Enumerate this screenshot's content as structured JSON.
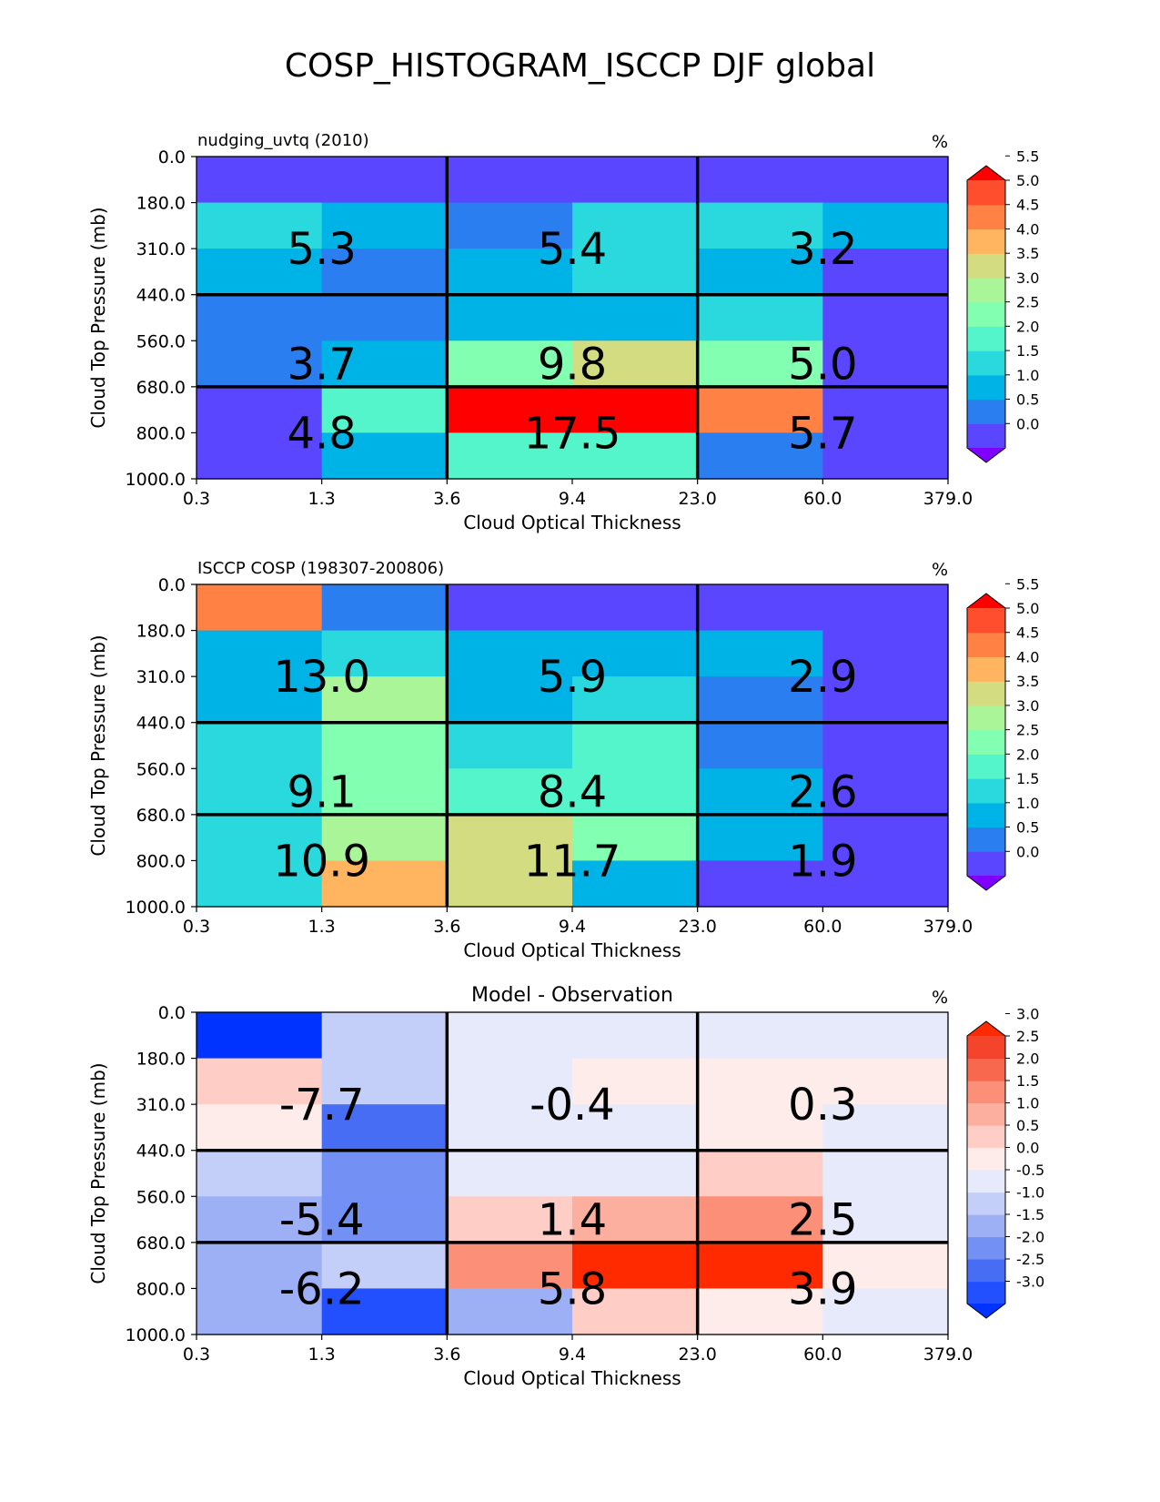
{
  "figure": {
    "title": "COSP_HISTOGRAM_ISCCP DJF global"
  },
  "chart_data": [
    {
      "type": "heatmap",
      "title_left": "nudging_uvtq (2010)",
      "title_center": "",
      "units": "%",
      "xlabel": "Cloud Optical Thickness",
      "ylabel": "Cloud Top Pressure (mb)",
      "x_edges": [
        "0.3",
        "1.3",
        "3.6",
        "9.4",
        "23.0",
        "60.0",
        "379.0"
      ],
      "y_edges": [
        "0.0",
        "180.0",
        "310.0",
        "440.0",
        "560.0",
        "680.0",
        "800.0",
        "1000.0"
      ],
      "values": [
        [
          0.2,
          0.2,
          0.2,
          0.2,
          0.2,
          0.2
        ],
        [
          1.8,
          1.3,
          0.8,
          1.8,
          1.8,
          1.3
        ],
        [
          1.3,
          0.8,
          1.3,
          1.8,
          1.3,
          0.2
        ],
        [
          0.8,
          0.8,
          1.3,
          1.3,
          1.8,
          0.2
        ],
        [
          0.8,
          1.3,
          2.8,
          3.8,
          2.8,
          0.2
        ],
        [
          0.2,
          2.3,
          5.8,
          5.8,
          4.8,
          0.2
        ],
        [
          0.2,
          1.3,
          2.3,
          2.3,
          0.8,
          0.2
        ]
      ],
      "box_labels": [
        [
          "5.3",
          "5.4",
          "3.2"
        ],
        [
          "3.7",
          "9.8",
          "5.0"
        ],
        [
          "4.8",
          "17.5",
          "5.7"
        ]
      ],
      "colorbar": {
        "levels": [
          0.0,
          0.5,
          1.0,
          1.5,
          2.0,
          2.5,
          3.0,
          3.5,
          4.0,
          4.5,
          5.0,
          5.5
        ],
        "tick_labels": [
          "0.0",
          "0.5",
          "1.0",
          "1.5",
          "2.0",
          "2.5",
          "3.0",
          "3.5",
          "4.0",
          "4.5",
          "5.0",
          "5.5"
        ],
        "colors": [
          "#8000ff",
          "#5a46ff",
          "#2a7ef0",
          "#00b3e6",
          "#2ad9dd",
          "#55f5cc",
          "#82ffb0",
          "#aaf597",
          "#d3dc80",
          "#ffb45f",
          "#ff8143",
          "#ff4e2d",
          "#ff0000"
        ]
      }
    },
    {
      "type": "heatmap",
      "title_left": "ISCCP COSP (198307-200806)",
      "title_center": "",
      "units": "%",
      "xlabel": "Cloud Optical Thickness",
      "ylabel": "Cloud Top Pressure (mb)",
      "x_edges": [
        "0.3",
        "1.3",
        "3.6",
        "9.4",
        "23.0",
        "60.0",
        "379.0"
      ],
      "y_edges": [
        "0.0",
        "180.0",
        "310.0",
        "440.0",
        "560.0",
        "680.0",
        "800.0",
        "1000.0"
      ],
      "values": [
        [
          4.8,
          0.8,
          0.2,
          0.2,
          0.2,
          0.2
        ],
        [
          1.3,
          1.8,
          1.3,
          1.3,
          1.3,
          0.2
        ],
        [
          1.3,
          3.3,
          1.3,
          1.8,
          0.8,
          0.2
        ],
        [
          1.8,
          2.8,
          1.8,
          2.3,
          0.8,
          0.2
        ],
        [
          1.8,
          2.8,
          2.3,
          2.3,
          1.3,
          0.2
        ],
        [
          1.8,
          3.3,
          3.8,
          2.8,
          1.3,
          0.2
        ],
        [
          1.8,
          4.3,
          3.8,
          1.3,
          0.2,
          0.2
        ]
      ],
      "box_labels": [
        [
          "13.0",
          "5.9",
          "2.9"
        ],
        [
          "9.1",
          "8.4",
          "2.6"
        ],
        [
          "10.9",
          "11.7",
          "1.9"
        ]
      ],
      "colorbar": {
        "levels": [
          0.0,
          0.5,
          1.0,
          1.5,
          2.0,
          2.5,
          3.0,
          3.5,
          4.0,
          4.5,
          5.0,
          5.5
        ],
        "tick_labels": [
          "0.0",
          "0.5",
          "1.0",
          "1.5",
          "2.0",
          "2.5",
          "3.0",
          "3.5",
          "4.0",
          "4.5",
          "5.0",
          "5.5"
        ],
        "colors": [
          "#8000ff",
          "#5a46ff",
          "#2a7ef0",
          "#00b3e6",
          "#2ad9dd",
          "#55f5cc",
          "#82ffb0",
          "#aaf597",
          "#d3dc80",
          "#ffb45f",
          "#ff8143",
          "#ff4e2d",
          "#ff0000"
        ]
      }
    },
    {
      "type": "heatmap",
      "title_left": "",
      "title_center": "Model - Observation",
      "units": "%",
      "xlabel": "Cloud Optical Thickness",
      "ylabel": "Cloud Top Pressure (mb)",
      "x_edges": [
        "0.3",
        "1.3",
        "3.6",
        "9.4",
        "23.0",
        "60.0",
        "379.0"
      ],
      "y_edges": [
        "0.0",
        "180.0",
        "310.0",
        "440.0",
        "560.0",
        "680.0",
        "800.0",
        "1000.0"
      ],
      "values": [
        [
          -3.1,
          -0.7,
          -0.2,
          -0.2,
          -0.2,
          -0.2
        ],
        [
          0.7,
          -0.7,
          -0.2,
          0.2,
          0.2,
          0.2
        ],
        [
          0.2,
          -2.2,
          -0.2,
          -0.2,
          0.2,
          -0.2
        ],
        [
          -0.7,
          -1.7,
          -0.2,
          -0.2,
          0.7,
          -0.2
        ],
        [
          -1.2,
          -1.7,
          0.7,
          1.2,
          1.7,
          -0.2
        ],
        [
          -1.2,
          -0.7,
          1.7,
          3.1,
          3.1,
          0.2
        ],
        [
          -1.2,
          -2.7,
          -1.2,
          0.7,
          0.2,
          -0.2
        ]
      ],
      "box_labels": [
        [
          "-7.7",
          "-0.4",
          "0.3"
        ],
        [
          "-5.4",
          "1.4",
          "2.5"
        ],
        [
          "-6.2",
          "5.8",
          "3.9"
        ]
      ],
      "colorbar": {
        "levels": [
          -3.0,
          -2.5,
          -2.0,
          -1.5,
          -1.0,
          -0.5,
          0.0,
          0.5,
          1.0,
          1.5,
          2.0,
          2.5,
          3.0
        ],
        "tick_labels": [
          "-3.0",
          "-2.5",
          "-2.0",
          "-1.5",
          "-1.0",
          "-0.5",
          "0.0",
          "0.5",
          "1.0",
          "1.5",
          "2.0",
          "2.5",
          "3.0"
        ],
        "colors": [
          "#0033ff",
          "#2250ff",
          "#476df5",
          "#7390f5",
          "#9db0f5",
          "#c4cff9",
          "#e7eafb",
          "#fdecea",
          "#fdcdc6",
          "#fcaf9f",
          "#fb8f78",
          "#f8684e",
          "#f4442b",
          "#ff2a00"
        ]
      }
    }
  ]
}
